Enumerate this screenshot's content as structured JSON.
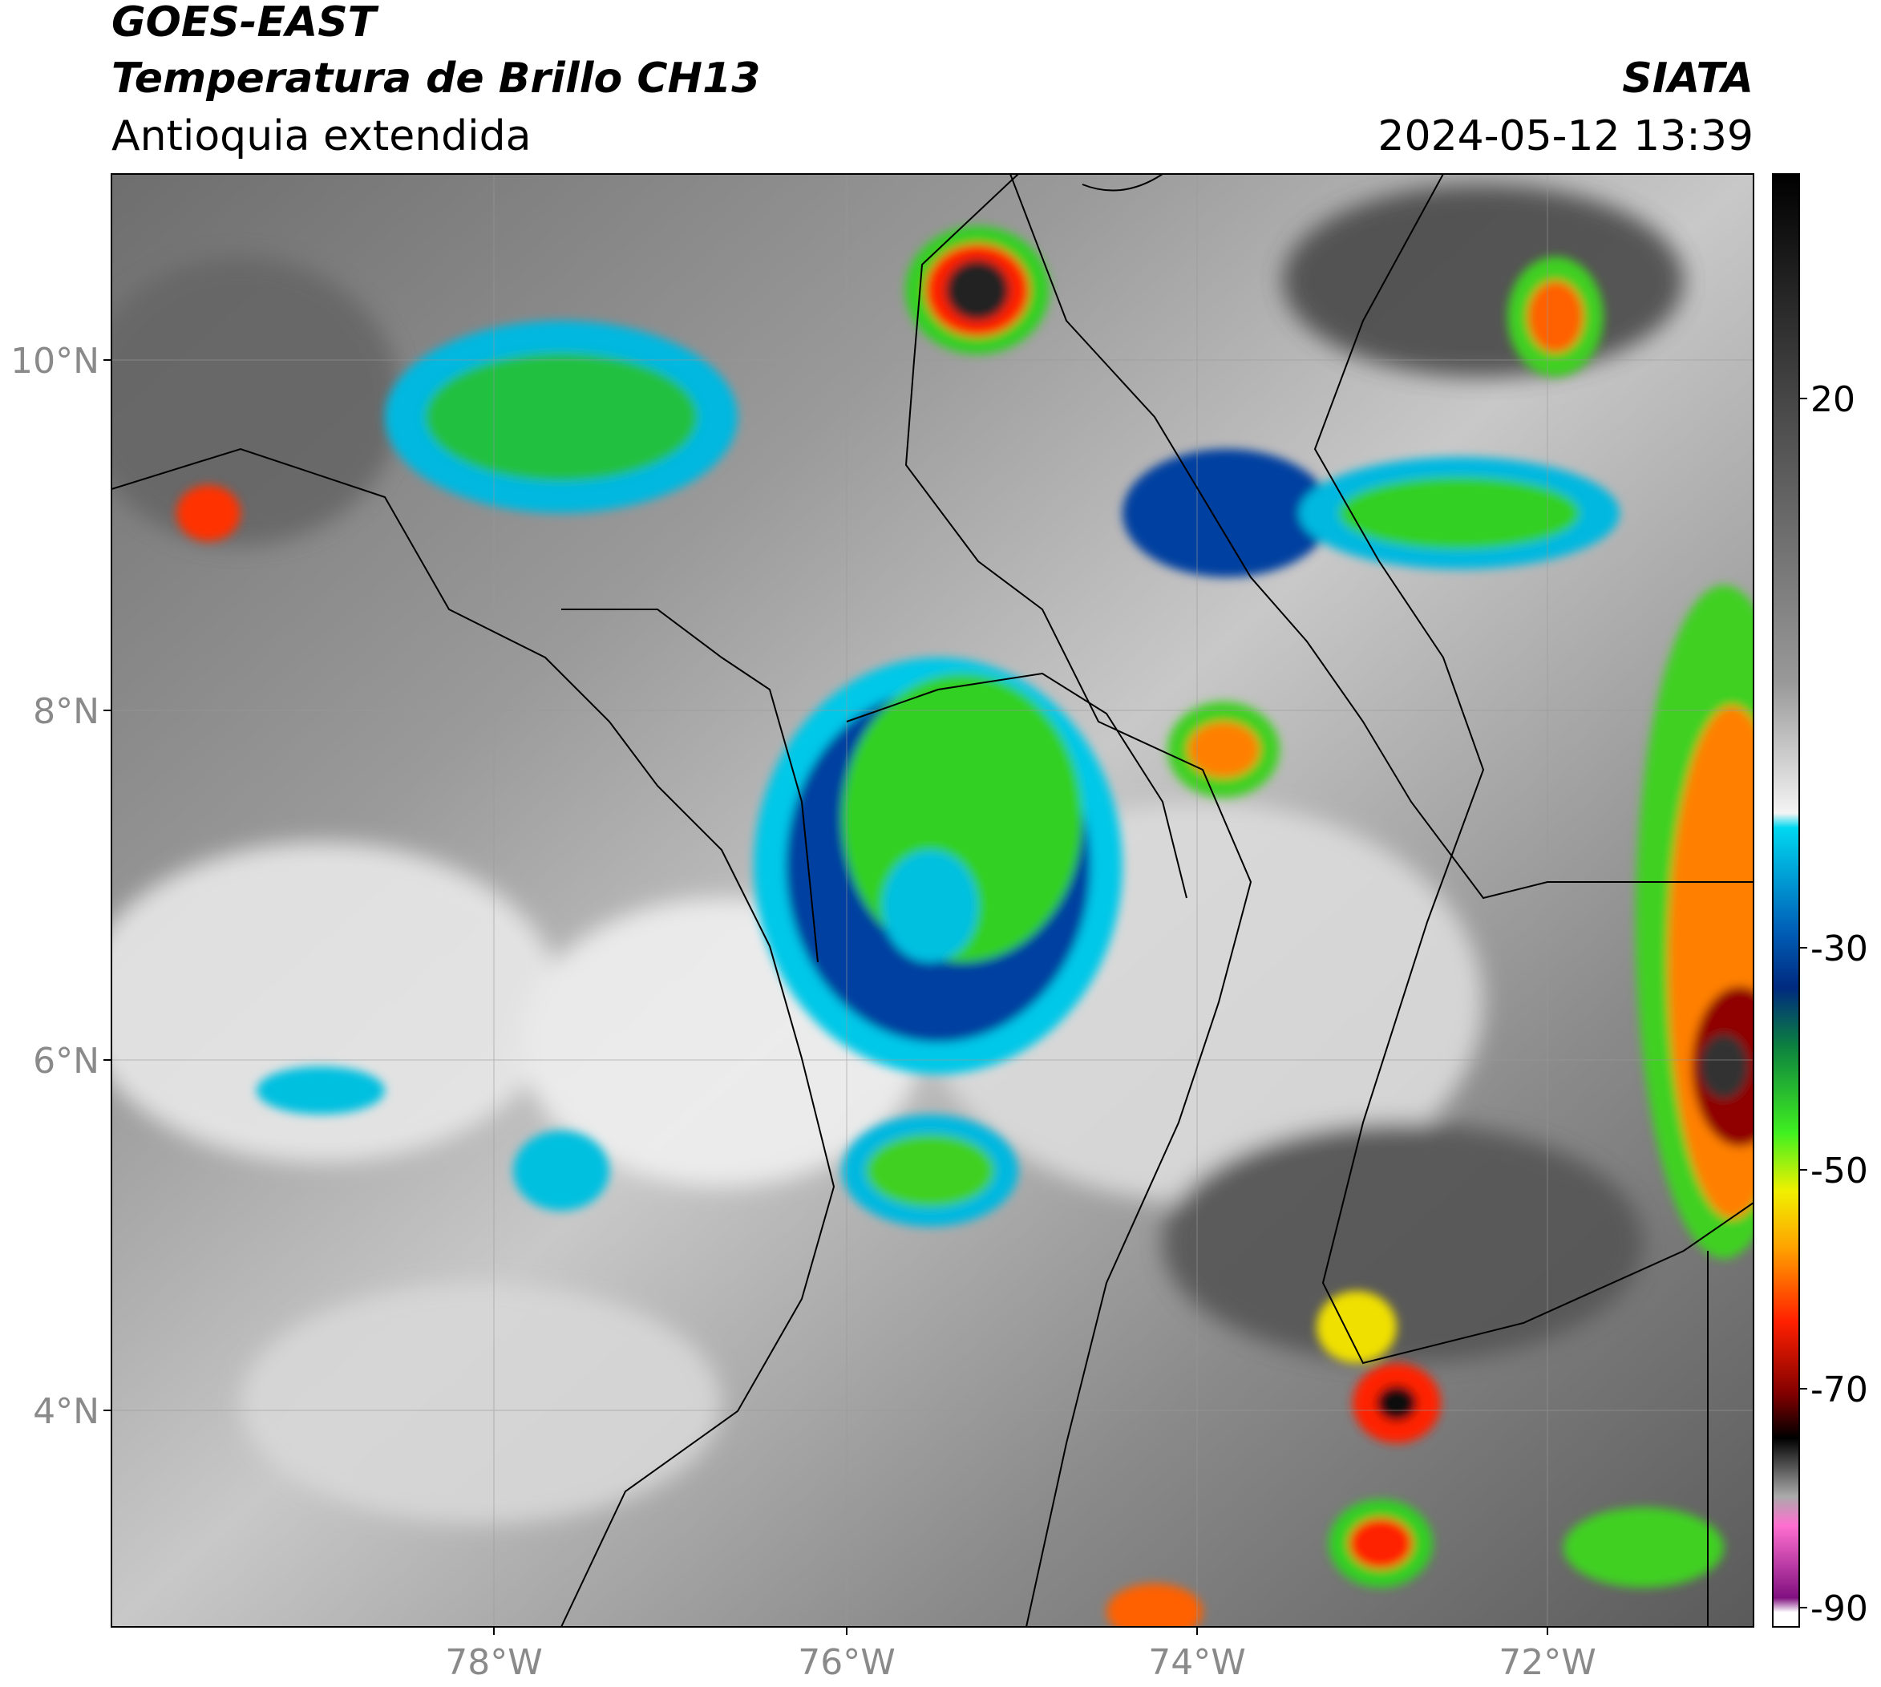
{
  "header": {
    "title": "GOES-EAST",
    "subtitle": "Temperatura de Brillo CH13",
    "region": "Antioquia extendida",
    "source": "SIATA",
    "timestamp": "2024-05-12 13:39"
  },
  "map": {
    "lat_labels": [
      "10°N",
      "8°N",
      "6°N",
      "4°N"
    ],
    "lon_labels": [
      "78°W",
      "76°W",
      "74°W",
      "72°W"
    ]
  },
  "colorbar": {
    "ticks": [
      "20",
      "-30",
      "-50",
      "-70",
      "-90"
    ]
  }
}
